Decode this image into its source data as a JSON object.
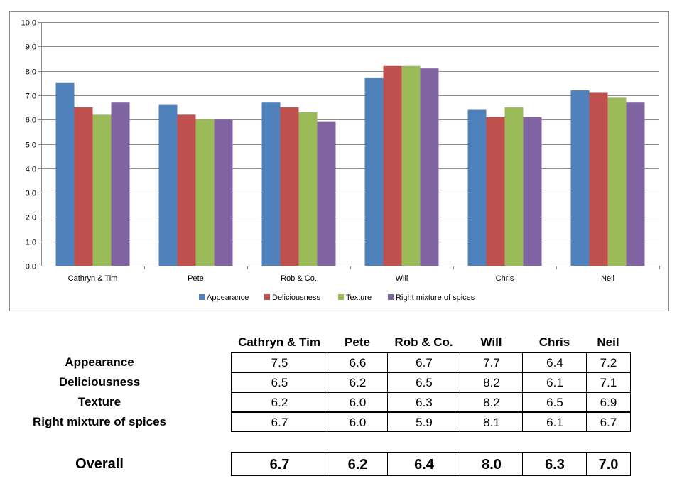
{
  "chart_data": {
    "type": "bar",
    "categories": [
      "Cathryn & Tim",
      "Pete",
      "Rob & Co.",
      "Will",
      "Chris",
      "Neil"
    ],
    "series": [
      {
        "name": "Appearance",
        "values": [
          7.5,
          6.6,
          6.7,
          7.7,
          6.4,
          7.2
        ],
        "color": "#4F81BD"
      },
      {
        "name": "Deliciousness",
        "values": [
          6.5,
          6.2,
          6.5,
          8.2,
          6.1,
          7.1
        ],
        "color": "#C0504D"
      },
      {
        "name": "Texture",
        "values": [
          6.2,
          6.0,
          6.3,
          8.2,
          6.5,
          6.9
        ],
        "color": "#9BBB59"
      },
      {
        "name": "Right mixture of spices",
        "values": [
          6.7,
          6.0,
          5.9,
          8.1,
          6.1,
          6.7
        ],
        "color": "#8064A2"
      }
    ],
    "yticks": [
      "0.0",
      "1.0",
      "2.0",
      "3.0",
      "4.0",
      "5.0",
      "6.0",
      "7.0",
      "8.0",
      "9.0",
      "10.0"
    ],
    "ylim": [
      0,
      10
    ],
    "grid": true,
    "legend": "bottom",
    "title": "",
    "xlabel": "",
    "ylabel": ""
  },
  "table": {
    "columns": [
      "Cathryn & Tim",
      "Pete",
      "Rob & Co.",
      "Will",
      "Chris",
      "Neil"
    ],
    "rows": [
      {
        "label": "Appearance",
        "values": [
          "7.5",
          "6.6",
          "6.7",
          "7.7",
          "6.4",
          "7.2"
        ]
      },
      {
        "label": "Deliciousness",
        "values": [
          "6.5",
          "6.2",
          "6.5",
          "8.2",
          "6.1",
          "7.1"
        ]
      },
      {
        "label": "Texture",
        "values": [
          "6.2",
          "6.0",
          "6.3",
          "8.2",
          "6.5",
          "6.9"
        ]
      },
      {
        "label": "Right mixture of spices",
        "values": [
          "6.7",
          "6.0",
          "5.9",
          "8.1",
          "6.1",
          "6.7"
        ]
      }
    ],
    "overall": {
      "label": "Overall",
      "values": [
        "6.7",
        "6.2",
        "6.4",
        "8.0",
        "6.3",
        "7.0"
      ]
    }
  }
}
